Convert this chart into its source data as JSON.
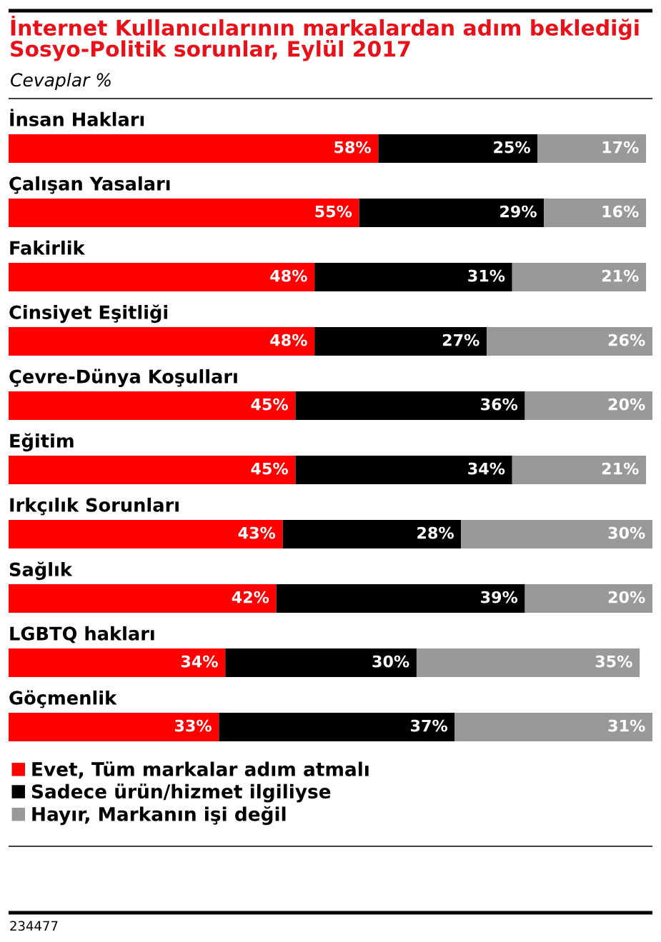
{
  "chart_data": {
    "type": "bar",
    "orientation": "horizontal",
    "stacked": true,
    "title": "İnternet Kullanıcılarının markalardan adım beklediği\nSosyo-Politik sorunlar, Eylül 2017",
    "subtitle": "Cevaplar %",
    "categories": [
      "İnsan Hakları",
      "Çalışan Yasaları",
      "Fakirlik",
      "Cinsiyet Eşitliği",
      "Çevre-Dünya Koşulları",
      "Eğitim",
      "Irkçılık Sorunları",
      "Sağlık",
      "LGBTQ hakları",
      "Göçmenlik"
    ],
    "series": [
      {
        "name": "Evet, Tüm markalar adım atmalı",
        "color": "#ff0000",
        "values": [
          58,
          55,
          48,
          48,
          45,
          45,
          43,
          42,
          34,
          33
        ],
        "value_labels": [
          "58%",
          "55%",
          "48%",
          "48%",
          "45%",
          "45%",
          "43%",
          "42%",
          "34%",
          "33%"
        ]
      },
      {
        "name": "Sadece ürün/hizmet ilgiliyse",
        "color": "#000000",
        "values": [
          25,
          29,
          31,
          27,
          36,
          34,
          28,
          39,
          30,
          37
        ],
        "value_labels": [
          "25%",
          "29%",
          "31%",
          "27%",
          "36%",
          "34%",
          "28%",
          "39%",
          "30%",
          "37%"
        ]
      },
      {
        "name": "Hayır, Markanın işi değil",
        "color": "#999999",
        "values": [
          17,
          16,
          21,
          26,
          20,
          21,
          30,
          20,
          35,
          31
        ],
        "value_labels": [
          "17%",
          "16%",
          "21%",
          "26%",
          "20%",
          "21%",
          "30%",
          "20%",
          "35%",
          "31%"
        ]
      }
    ],
    "legend": "bottom",
    "annotations": [
      "234477"
    ]
  }
}
